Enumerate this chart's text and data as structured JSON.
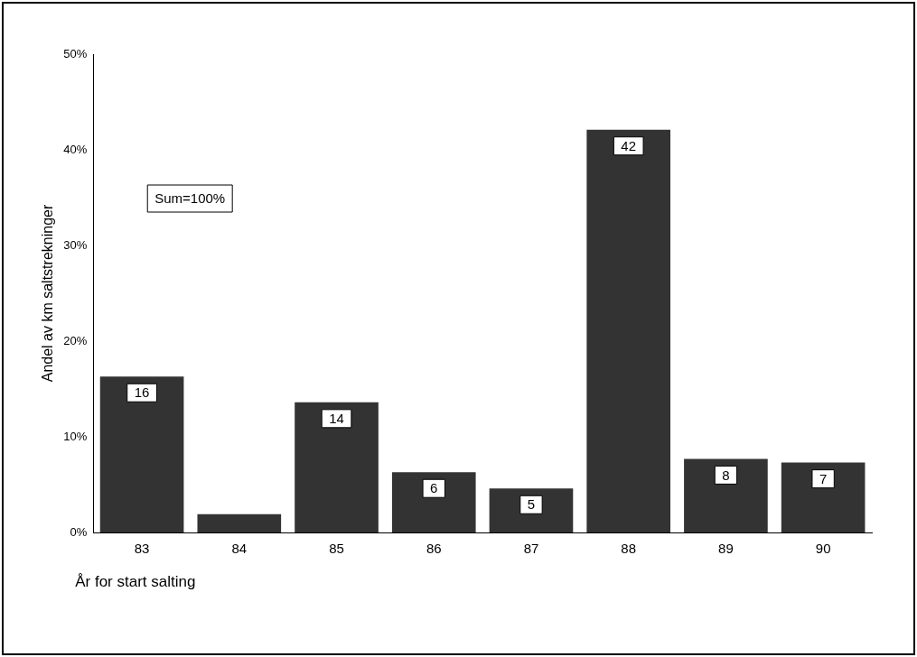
{
  "chart_data": {
    "type": "bar",
    "ylabel": "Andel av km saltstrekninger",
    "xlabel": "År for start salting",
    "categories": [
      "83",
      "84",
      "85",
      "86",
      "87",
      "88",
      "89",
      "90"
    ],
    "values": [
      16.3,
      1.9,
      13.6,
      6.3,
      4.6,
      42.1,
      7.7,
      7.3
    ],
    "value_labels": [
      "16",
      null,
      "14",
      "6",
      "5",
      "42",
      "8",
      "7"
    ],
    "color": "#333333",
    "ylim": [
      0,
      50
    ],
    "yticks": [
      {
        "value": 0,
        "label": "0%"
      },
      {
        "value": 10,
        "label": "10%"
      },
      {
        "value": 20,
        "label": "20%"
      },
      {
        "value": 30,
        "label": "30%"
      },
      {
        "value": 40,
        "label": "40%"
      },
      {
        "value": 50,
        "label": "50%"
      }
    ],
    "grid": false,
    "legend": false,
    "annotations": [
      "Sum=100%"
    ]
  }
}
